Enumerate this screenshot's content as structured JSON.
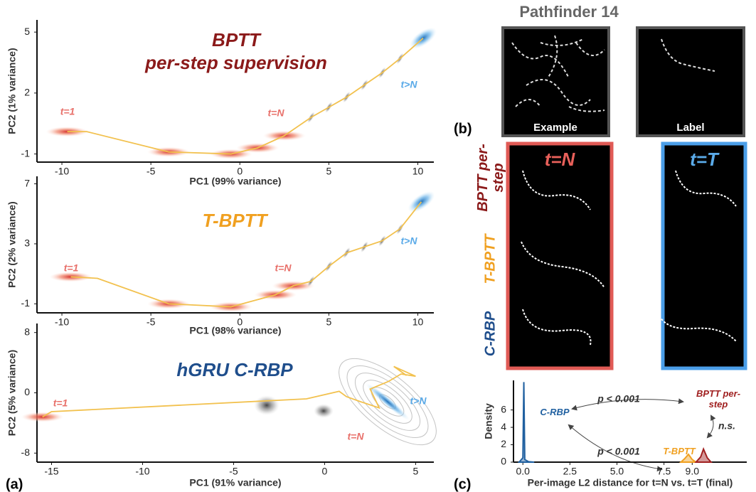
{
  "chart_data": [
    {
      "type": "line",
      "title": "BPTT",
      "subtitle": "per-step supervision",
      "title_color": "#8b1a1a",
      "xlabel": "PC1 (99% variance)",
      "ylabel": "PC2 (1% variance)",
      "xlim": [
        -11.4,
        10.9
      ],
      "xticks": [
        -10,
        -5,
        0,
        5,
        10
      ],
      "ylim": [
        -1.4,
        5.6
      ],
      "yticks": [
        -1,
        2,
        5
      ],
      "x": [
        -9.7,
        -8.6,
        -4,
        -0.5,
        1,
        2.5,
        4,
        5,
        6,
        7,
        8,
        9,
        10.3
      ],
      "values": [
        0.1,
        0.1,
        -0.9,
        -1,
        -0.7,
        -0.1,
        0.8,
        1.3,
        1.8,
        2.4,
        3,
        3.7,
        4.7
      ],
      "color": "#f2c14e",
      "annotations": [
        {
          "text": "t=1",
          "color": "#e8706a"
        },
        {
          "text": "t=N",
          "color": "#e8706a"
        },
        {
          "text": "t>N",
          "color": "#5aaae8"
        }
      ]
    },
    {
      "type": "line",
      "title": "T-BPTT",
      "title_color": "#f0a020",
      "xlabel": "PC1 (98% variance)",
      "ylabel": "PC2 (2% variance)",
      "xlim": [
        -11.4,
        10.9
      ],
      "xticks": [
        -10,
        -5,
        0,
        5,
        10
      ],
      "ylim": [
        -1.6,
        7.5
      ],
      "yticks": [
        -1,
        3,
        7
      ],
      "x": [
        -9.5,
        -8,
        -4,
        -0.5,
        2,
        3,
        4,
        5,
        6,
        7,
        8,
        9,
        10.2
      ],
      "values": [
        0.8,
        0.7,
        -1,
        -1.2,
        -0.4,
        0.2,
        0.5,
        1.5,
        2.4,
        2.8,
        3.2,
        4,
        5.8
      ],
      "color": "#f2c14e",
      "annotations": [
        {
          "text": "t=1",
          "color": "#e8706a"
        },
        {
          "text": "t=N",
          "color": "#e8706a"
        },
        {
          "text": "t>N",
          "color": "#5aaae8"
        }
      ]
    },
    {
      "type": "line",
      "title": "hGRU C-RBP",
      "title_color": "#1f4e8c",
      "xlabel": "PC1 (91% variance)",
      "ylabel": "PC2 (5% variance)",
      "xlim": [
        -15.8,
        6
      ],
      "xticks": [
        -15,
        -10,
        -5,
        0,
        5
      ],
      "ylim": [
        -9.2,
        9.2
      ],
      "yticks": [
        -8,
        0,
        8
      ],
      "x": [
        -15.5,
        -15,
        -1,
        0.8,
        1.2,
        2,
        3,
        2.5,
        3.5,
        4.2,
        5,
        3.8,
        4.5
      ],
      "values": [
        -3.2,
        -2.5,
        -0.8,
        0.2,
        -0.5,
        -1.2,
        -2,
        0.5,
        1.5,
        2.5,
        2.2,
        3.5,
        2.3
      ],
      "color": "#f2c14e",
      "annotations": [
        {
          "text": "t=1",
          "color": "#e8706a"
        },
        {
          "text": "t>N",
          "color": "#5aaae8"
        },
        {
          "text": "t=N",
          "color": "#e8706a"
        }
      ]
    },
    {
      "type": "density",
      "xlabel": "Per-image L2 distance for t=N vs. t=T (final)",
      "ylabel": "Density",
      "xlim": [
        -0.5,
        11.9
      ],
      "xticks": [
        {
          "value": 0,
          "label": "0.0"
        },
        2.5,
        {
          "value": 5,
          "label": "5.0"
        },
        7.5,
        {
          "value": 9,
          "label": "9.0"
        }
      ],
      "ylim": [
        0,
        9.4
      ],
      "yticks": [
        0,
        2,
        4,
        6
      ],
      "series": [
        {
          "name": "C-RBP",
          "color": "#2060a0",
          "x": [
            -0.2,
            0,
            0.05,
            0.1,
            0.3,
            0.6
          ],
          "values": [
            0,
            0.5,
            9.2,
            0.3,
            0.05,
            0
          ]
        },
        {
          "name": "T-BPTT",
          "color": "#f0a020",
          "x": [
            8.4,
            8.6,
            8.8,
            9,
            9.2
          ],
          "values": [
            0,
            0.4,
            0.9,
            0.3,
            0
          ]
        },
        {
          "name": "BPTT per-step",
          "color": "#a02020",
          "x": [
            9.2,
            9.45,
            9.6,
            9.8,
            10
          ],
          "values": [
            0,
            0.6,
            1.5,
            0.5,
            0
          ]
        }
      ],
      "annotations": [
        {
          "text": "p < 0.001",
          "color": "#333333"
        },
        {
          "text": "p < 0.001",
          "color": "#333333"
        },
        {
          "text": "n.s.",
          "color": "#333333"
        }
      ]
    }
  ],
  "panel_labels": [
    "(a)",
    "(b)",
    "(c)"
  ],
  "panel_b": {
    "title": "Pathfinder 14",
    "example": "Example",
    "label": "Label",
    "columns": [
      "t=N",
      "t=T"
    ],
    "rows": [
      "BPTT per-step",
      "T-BPTT",
      "C-RBP"
    ]
  }
}
